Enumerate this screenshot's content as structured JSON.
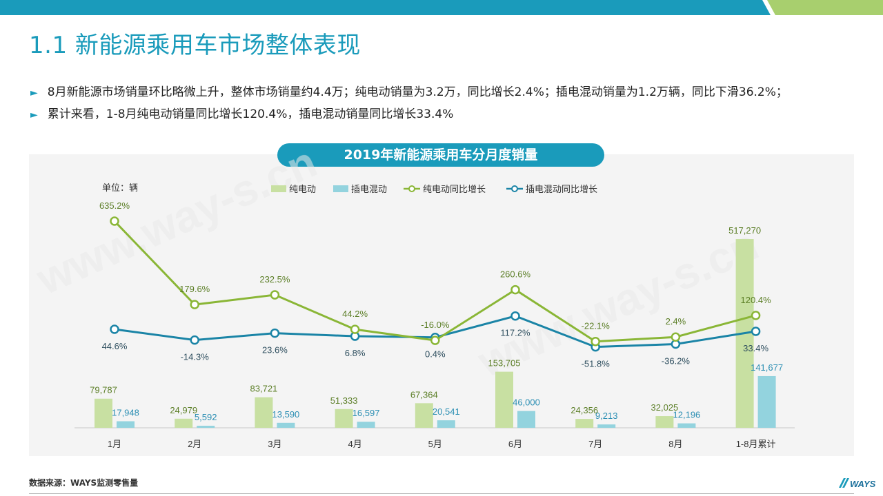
{
  "title": "1.1 新能源乘用车市场整体表现",
  "bullets": [
    "8月新能源市场销量环比略微上升，整体市场销量约4.4万；纯电动销量为3.2万，同比增长2.4%；插电混动销量为1.2万辆，同比下滑36.2%；",
    "累计来看，1-8月纯电动销量同比增长120.4%，插电混动销量同比增长33.4%"
  ],
  "source": "数据来源：WAYS监测零售量",
  "logo_text": "WAYS",
  "watermark": "www.way-s.cn",
  "colors": {
    "header": "#1a9bbb",
    "header_accent": "#a8cf6e",
    "bev_bar": "#c8e0a2",
    "phev_bar": "#93d3de",
    "bev_line": "#8ab636",
    "phev_line": "#1a84a6",
    "bev_label": "#5b7e26",
    "phev_label": "#2a8eb3",
    "line_label": "#2f4f5f"
  },
  "chart_data": {
    "type": "bar",
    "title": "2019年新能源乘用车分月度销量",
    "unit_label": "单位：辆",
    "categories": [
      "1月",
      "2月",
      "3月",
      "4月",
      "5月",
      "6月",
      "7月",
      "8月",
      "1-8月累计"
    ],
    "legend_position": "top",
    "grid": false,
    "series": [
      {
        "name": "纯电动",
        "type": "bar",
        "values": [
          79787,
          24979,
          83721,
          51333,
          67364,
          153705,
          24356,
          32025,
          517270
        ],
        "labels": [
          "79,787",
          "24,979",
          "83,721",
          "51,333",
          "67,364",
          "153,705",
          "24,356",
          "32,025",
          "517,270"
        ]
      },
      {
        "name": "插电混动",
        "type": "bar",
        "values": [
          17948,
          5592,
          13590,
          16597,
          20541,
          46000,
          9213,
          12196,
          141677
        ],
        "labels": [
          "17,948",
          "5,592",
          "13,590",
          "16,597",
          "20,541",
          "46,000",
          "9,213",
          "12,196",
          "141,677"
        ]
      },
      {
        "name": "纯电动同比增长",
        "type": "line",
        "values": [
          635.2,
          179.6,
          232.5,
          44.2,
          -16.0,
          260.6,
          -22.1,
          2.4,
          120.4
        ],
        "labels": [
          "635.2%",
          "179.6%",
          "232.5%",
          "44.2%",
          "-16.0%",
          "260.6%",
          "-22.1%",
          "2.4%",
          "120.4%"
        ]
      },
      {
        "name": "插电混动同比增长",
        "type": "line",
        "values": [
          44.6,
          -14.3,
          23.6,
          6.8,
          0.4,
          117.2,
          -51.8,
          -36.2,
          33.4
        ],
        "labels": [
          "44.6%",
          "-14.3%",
          "23.6%",
          "6.8%",
          "0.4%",
          "117.2%",
          "-51.8%",
          "-36.2%",
          "33.4%"
        ]
      }
    ]
  }
}
